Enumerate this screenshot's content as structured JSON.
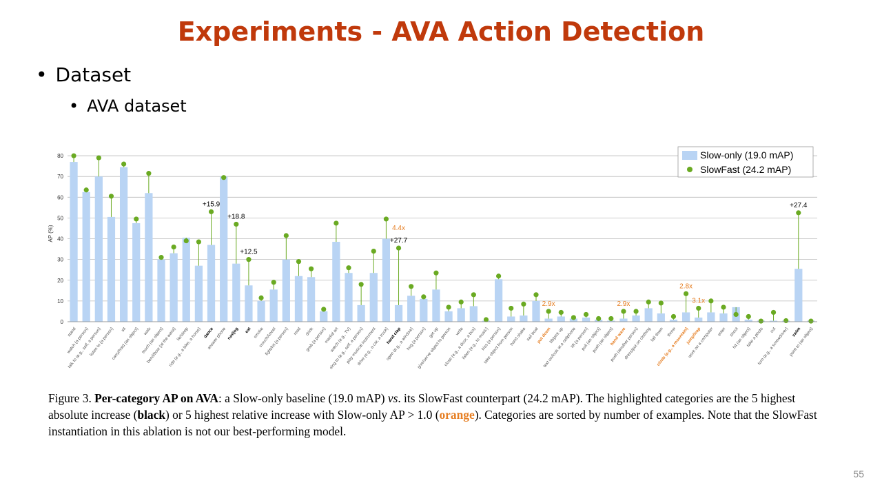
{
  "slide": {
    "title": "Experiments - AVA Action Detection",
    "bullet1": "Dataset",
    "bullet2": "AVA dataset",
    "page_number": "55"
  },
  "caption": {
    "fig": "Figure 3.",
    "bold1": "Per-category AP on AVA",
    "t1": ": a Slow-only baseline (19.0 mAP) ",
    "vs": "vs",
    "t2": ". its SlowFast counterpart (24.2 mAP). The highlighted categories are the 5 highest absolute increase (",
    "black": "black",
    "t3": ") or 5 highest relative increase with Slow-only AP > 1.0 (",
    "orange": "orange",
    "t4": "). Categories are sorted by number of examples. Note that the SlowFast instantiation in this ablation is not our best-performing model."
  },
  "chart_data": {
    "type": "bar",
    "ylabel": "AP (%)",
    "ylim": [
      0,
      85
    ],
    "yticks": [
      0,
      10,
      20,
      30,
      40,
      50,
      60,
      70,
      80
    ],
    "grid": true,
    "legend_position": "top-right",
    "colors": {
      "bar": "#b9d4f4",
      "dot": "#6aaa22",
      "highlight_orange": "#e67e22",
      "grid": "#bbbbbb"
    },
    "categories": [
      "stand",
      "watch (a person)",
      "talk to (e.g., self, a person)",
      "listen to (a person)",
      "sit",
      "carry/hold (an object)",
      "walk",
      "touch (an object)",
      "bend/bow (at the waist)",
      "lie/sleep",
      "ride (e.g., a bike, a horse)",
      "dance",
      "answer phone",
      "run/jog",
      "eat",
      "smoke",
      "crouch/kneel",
      "fight/hit (a person)",
      "read",
      "drink",
      "grab (a person)",
      "martial art",
      "watch (e.g., TV)",
      "sing to (e.g., self, a person)",
      "play musical instrument",
      "drive (e.g., a car, a truck)",
      "hand clap",
      "open (e.g., a window)",
      "hug (a person)",
      "get up",
      "give/serve object to person",
      "write",
      "close (e.g., a door, a box)",
      "listen (e.g., to music)",
      "kiss (a person)",
      "take object from person",
      "hand shake",
      "sail boat",
      "put down",
      "lift/pick up",
      "text on/look at a cellphone",
      "lift (a person)",
      "pull (an object)",
      "push (an object)",
      "hand wave",
      "push (another person)",
      "dress/put on clothing",
      "fall down",
      "throw",
      "climb (e.g., a mountain)",
      "jump/leap",
      "work on a computer",
      "enter",
      "shoot",
      "hit (an object)",
      "take a photo",
      "cut",
      "turn (e.g., a screwdriver)",
      "swim",
      "point to (an object)"
    ],
    "highlight": [
      "n",
      "n",
      "n",
      "n",
      "n",
      "n",
      "n",
      "n",
      "n",
      "n",
      "n",
      "b",
      "n",
      "b",
      "b",
      "n",
      "n",
      "n",
      "n",
      "n",
      "n",
      "n",
      "n",
      "n",
      "n",
      "n",
      "b",
      "n",
      "n",
      "n",
      "n",
      "n",
      "n",
      "n",
      "n",
      "n",
      "n",
      "n",
      "o",
      "n",
      "n",
      "n",
      "n",
      "n",
      "o",
      "n",
      "n",
      "n",
      "n",
      "o",
      "o",
      "n",
      "n",
      "n",
      "n",
      "n",
      "n",
      "n",
      "b",
      "n"
    ],
    "series": [
      {
        "name": "Slow-only (19.0 mAP)",
        "values": [
          77,
          62.5,
          70,
          50.5,
          74.5,
          47.5,
          62,
          30,
          33,
          40.5,
          27,
          37,
          70,
          28,
          17.5,
          10,
          15.5,
          30,
          22,
          21.5,
          5,
          38.5,
          23.5,
          8,
          23.5,
          40,
          8,
          12.5,
          11,
          15.5,
          5,
          6.5,
          7.5,
          0.5,
          20.5,
          2.5,
          3,
          10,
          1.5,
          2.5,
          1.5,
          2,
          1,
          0.5,
          1.5,
          3,
          6.5,
          4,
          1,
          4.5,
          2,
          4.5,
          4,
          7,
          1,
          0.5,
          0.5,
          0.5,
          25.5,
          0.5
        ]
      },
      {
        "name": "SlowFast (24.2 mAP)",
        "values": [
          80,
          63.5,
          79,
          60.5,
          76,
          49.5,
          71.5,
          31,
          36,
          39,
          38.5,
          53,
          69.5,
          47,
          30,
          11.5,
          19,
          41.5,
          29,
          25.5,
          6,
          47.5,
          26,
          18,
          34,
          49.5,
          35.5,
          17,
          12,
          23.5,
          7,
          9.5,
          13,
          1,
          22,
          6.5,
          8.5,
          13,
          5,
          4.5,
          2,
          3.5,
          1.5,
          1.5,
          5,
          5,
          9.5,
          9,
          2.5,
          13.5,
          6.5,
          10,
          7,
          3.5,
          2.5,
          0.3,
          4.5,
          0.5,
          52.5,
          0.3
        ]
      }
    ],
    "annotations": [
      {
        "category": "dance",
        "text": "+15.9",
        "style": "black"
      },
      {
        "category": "run/jog",
        "text": "+18.8",
        "style": "black"
      },
      {
        "category": "eat",
        "text": "+12.5",
        "style": "black"
      },
      {
        "category": "hand clap",
        "text": "+27.7",
        "style": "black"
      },
      {
        "category": "swim",
        "text": "+27.4",
        "style": "black"
      },
      {
        "category": "hand clap",
        "text": "4.4x",
        "style": "orange"
      },
      {
        "category": "put down",
        "text": "2.9x",
        "style": "orange"
      },
      {
        "category": "hand wave",
        "text": "2.9x",
        "style": "orange"
      },
      {
        "category": "climb (e.g., a mountain)",
        "text": "2.8x",
        "style": "orange"
      },
      {
        "category": "jump/leap",
        "text": "3.1x",
        "style": "orange"
      }
    ]
  }
}
